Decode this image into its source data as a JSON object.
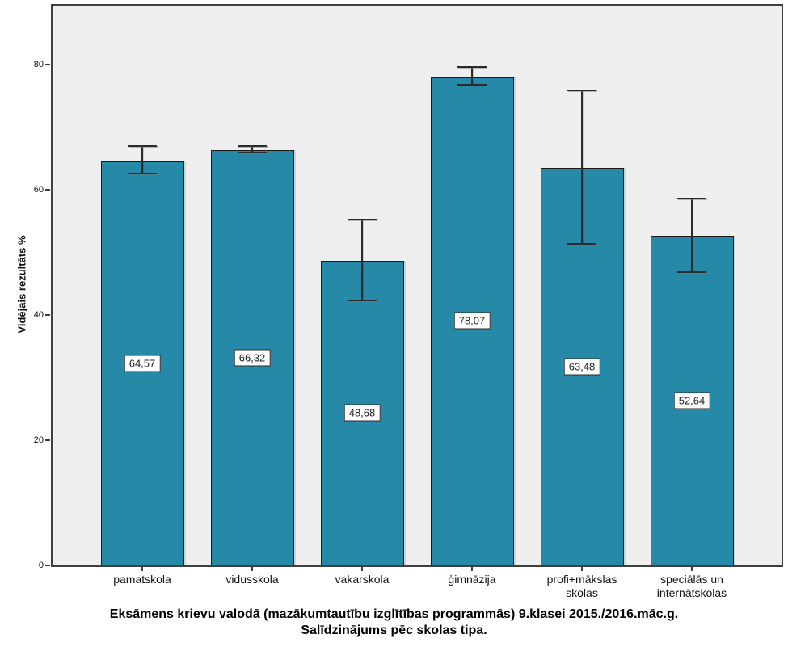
{
  "chart_data": {
    "type": "bar",
    "title_lines": [
      "Eksāmens krievu valodā (mazākumtautību izglītības programmās) 9.klasei 2015./2016.māc.g.",
      "Salīdzinājums pēc skolas tipa."
    ],
    "ylabel": "Vidējais rezultāts %",
    "xlabel": "",
    "categories": [
      "pamatskola",
      "vidusskola",
      "vakarskola",
      "ģimnāzija",
      "profi+mākslas\nskolas",
      "speciālās un\ninternātskolas"
    ],
    "values": [
      64.57,
      66.32,
      48.68,
      78.07,
      63.48,
      52.64
    ],
    "value_labels": [
      "64,57",
      "66,32",
      "48,68",
      "78,07",
      "63,48",
      "52,64"
    ],
    "error_low": [
      62.6,
      65.9,
      42.3,
      76.8,
      51.4,
      46.8
    ],
    "error_high": [
      66.9,
      67.0,
      55.2,
      79.6,
      75.9,
      58.6
    ],
    "yticks": [
      0,
      20,
      40,
      60,
      80
    ],
    "ylim": [
      0,
      89.4
    ],
    "grid": false,
    "legend": null,
    "colors": {
      "bar_fill": "#2789a8",
      "bar_border": "#1a1a1a",
      "plot_background": "#efefef",
      "frame": "#3f3f3f",
      "error_bar": "#2b2b2b",
      "value_label_background": "#ffffff",
      "text": "#111111"
    }
  }
}
